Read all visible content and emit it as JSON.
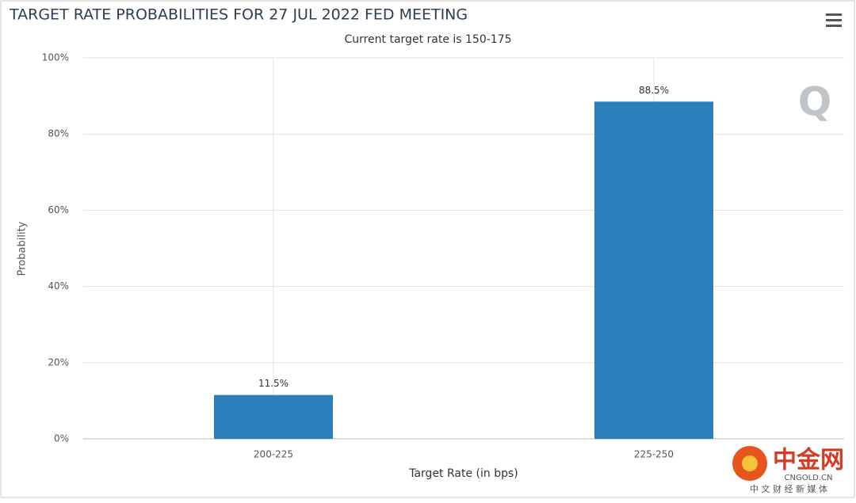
{
  "chart_data": {
    "type": "bar",
    "title": "TARGET RATE PROBABILITIES FOR 27 JUL 2022 FED MEETING",
    "subtitle": "Current target rate is 150-175",
    "x_label": "Target Rate (in bps)",
    "y_label": "Probability",
    "categories": [
      "200-225",
      "225-250"
    ],
    "values": [
      11.5,
      88.5
    ],
    "value_labels": [
      "11.5%",
      "88.5%"
    ],
    "color": "#2a7fba",
    "ylim": [
      0,
      100
    ],
    "yticks": [
      {
        "value": 0,
        "label": "0%"
      },
      {
        "value": 20,
        "label": "20%"
      },
      {
        "value": 40,
        "label": "40%"
      },
      {
        "value": 60,
        "label": "60%"
      },
      {
        "value": 80,
        "label": "80%"
      },
      {
        "value": 100,
        "label": "100%"
      }
    ],
    "grid": true
  },
  "logo": "Q",
  "watermark": {
    "name": "中金网",
    "site": "CNGOLD.CN",
    "tagline": "中 文 财 经 新 媒 体"
  }
}
